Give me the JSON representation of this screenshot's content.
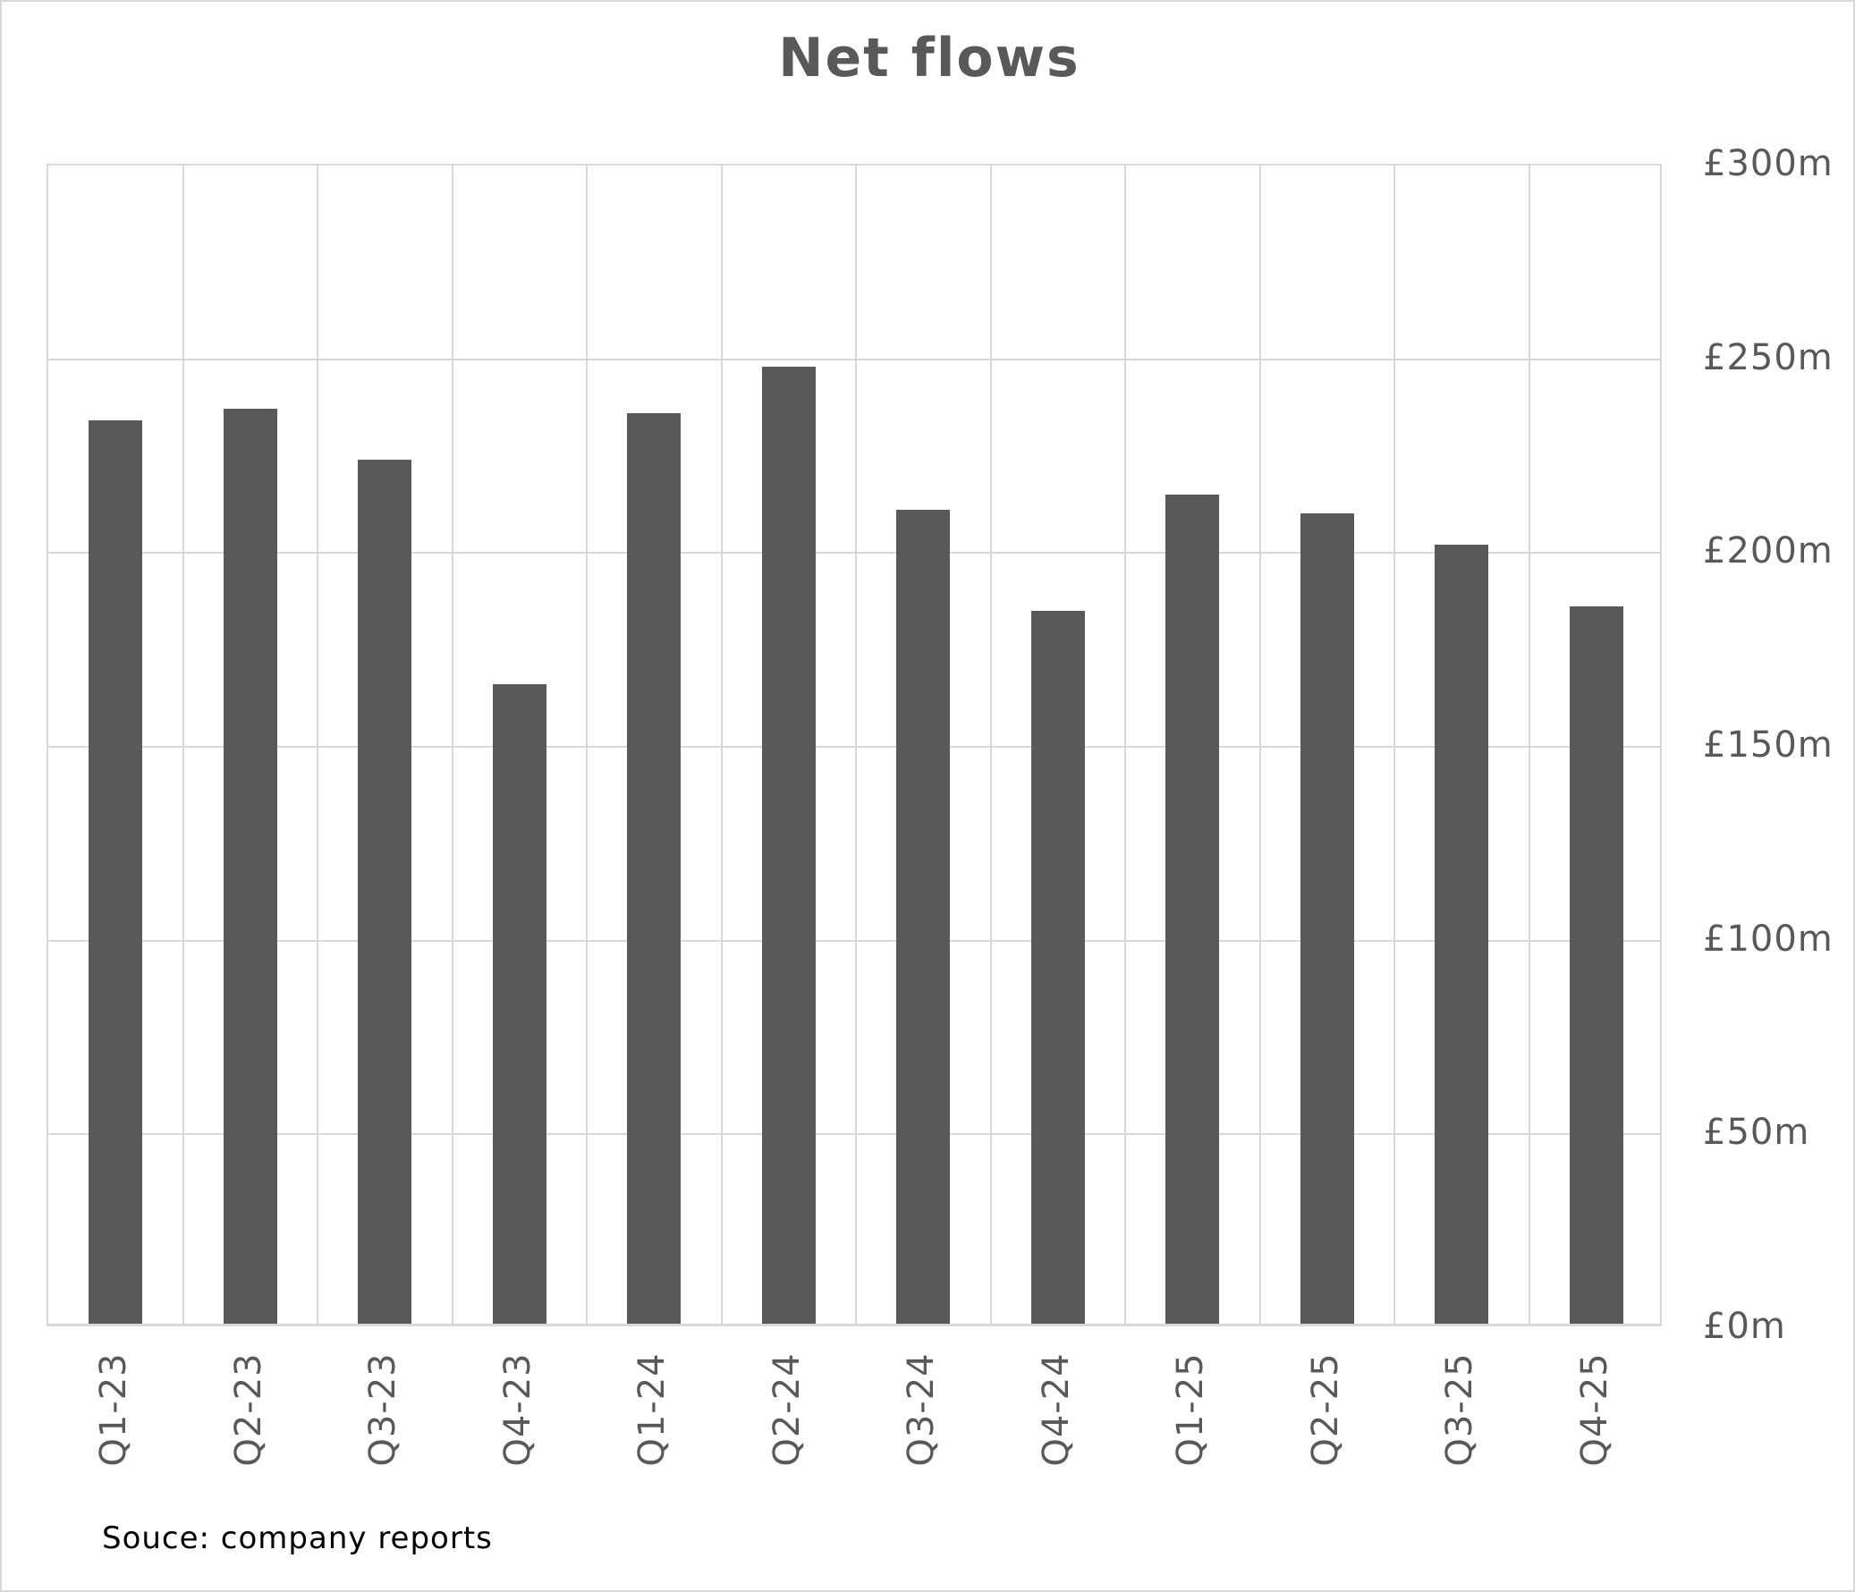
{
  "title": "Net flows",
  "source_note": "Souce: company reports",
  "colors": {
    "bar": "#595959",
    "grid": "#d9d9d9",
    "axis_text": "#595959",
    "source_text": "#000000",
    "background": "#ffffff"
  },
  "chart_data": {
    "type": "bar",
    "title": "Net flows",
    "categories": [
      "Q1-23",
      "Q2-23",
      "Q3-23",
      "Q4-23",
      "Q1-24",
      "Q2-24",
      "Q3-24",
      "Q4-24",
      "Q1-25",
      "Q2-25",
      "Q3-25",
      "Q4-25"
    ],
    "values": [
      233,
      236,
      223,
      165,
      235,
      247,
      210,
      184,
      214,
      209,
      201,
      185
    ],
    "unit": "£m",
    "xlabel": "",
    "ylabel": "",
    "ylim": [
      0,
      300
    ],
    "ytick_step": 50,
    "yticks": [
      {
        "value": 0,
        "label": "£0m"
      },
      {
        "value": 50,
        "label": "£50m"
      },
      {
        "value": 100,
        "label": "£100m"
      },
      {
        "value": 150,
        "label": "£150m"
      },
      {
        "value": 200,
        "label": "£200m"
      },
      {
        "value": 250,
        "label": "£250m"
      },
      {
        "value": 300,
        "label": "£300m"
      }
    ],
    "grid": true,
    "legend": false,
    "y_axis_side": "right",
    "x_label_rotation": -90
  }
}
